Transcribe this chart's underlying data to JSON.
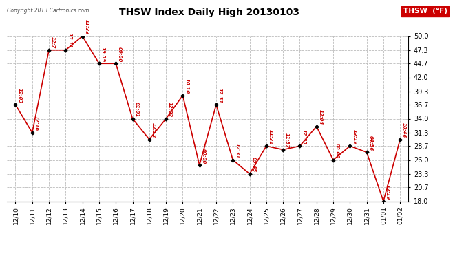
{
  "title": "THSW Index Daily High 20130103",
  "copyright_text": "Copyright 2013 Cartronics.com",
  "legend_label": "THSW  (°F)",
  "bg_color": "#ffffff",
  "line_color": "#cc0000",
  "marker_color": "#000000",
  "label_color": "#cc0000",
  "grid_color": "#bbbbbb",
  "ylim": [
    18.0,
    50.0
  ],
  "yticks": [
    18.0,
    20.7,
    23.3,
    26.0,
    28.7,
    31.3,
    34.0,
    36.7,
    39.3,
    42.0,
    44.7,
    47.3,
    50.0
  ],
  "dates": [
    "12/10",
    "12/11",
    "12/12",
    "12/13",
    "12/14",
    "12/15",
    "12/16",
    "12/17",
    "12/18",
    "12/19",
    "12/20",
    "12/21",
    "12/22",
    "12/23",
    "12/24",
    "12/25",
    "12/26",
    "12/27",
    "12/28",
    "12/29",
    "12/30",
    "12/31",
    "01/01",
    "01/02"
  ],
  "values": [
    36.7,
    31.3,
    47.3,
    47.3,
    50.0,
    44.7,
    44.7,
    34.0,
    30.0,
    34.0,
    38.5,
    25.0,
    36.7,
    26.0,
    23.3,
    28.7,
    28.0,
    28.7,
    32.5,
    26.0,
    28.7,
    27.5,
    18.0,
    30.0
  ],
  "time_labels": [
    "12:03",
    "12:16",
    "12:7",
    "15:11",
    "11:33",
    "19:59",
    "00:00",
    "01:01",
    "12:12",
    "12:02",
    "10:10",
    "00:00",
    "12:31",
    "12:31",
    "09:45",
    "11:31",
    "11:57",
    "12:55",
    "12:04",
    "00:00",
    "13:19",
    "04:56",
    "12:19",
    "10:46"
  ]
}
